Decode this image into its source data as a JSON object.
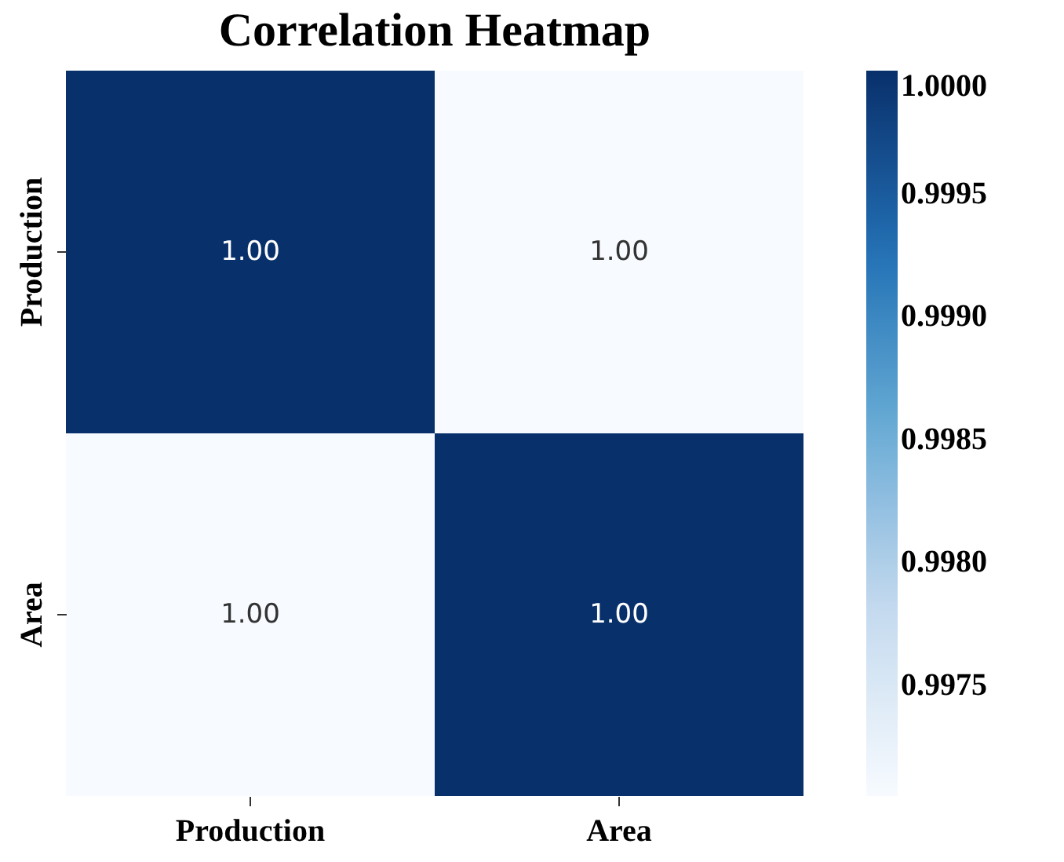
{
  "chart_data": {
    "type": "heatmap",
    "title": "Correlation Heatmap",
    "categories": [
      "Production",
      "Area"
    ],
    "y_categories": [
      "Production",
      "Area"
    ],
    "cells": [
      [
        1.0,
        0.99705
      ],
      [
        0.99705,
        1.0
      ]
    ],
    "cell_labels": [
      [
        "1.00",
        "1.00"
      ],
      [
        "1.00",
        "1.00"
      ]
    ],
    "clim": [
      0.99705,
      1.0
    ],
    "cticks": [
      {
        "value": 0.9975,
        "label": "0.9975"
      },
      {
        "value": 0.998,
        "label": "0.9980"
      },
      {
        "value": 0.9985,
        "label": "0.9985"
      },
      {
        "value": 0.999,
        "label": "0.9990"
      },
      {
        "value": 0.9995,
        "label": "0.9995"
      },
      {
        "value": 1.0,
        "label": "1.0000"
      }
    ]
  }
}
